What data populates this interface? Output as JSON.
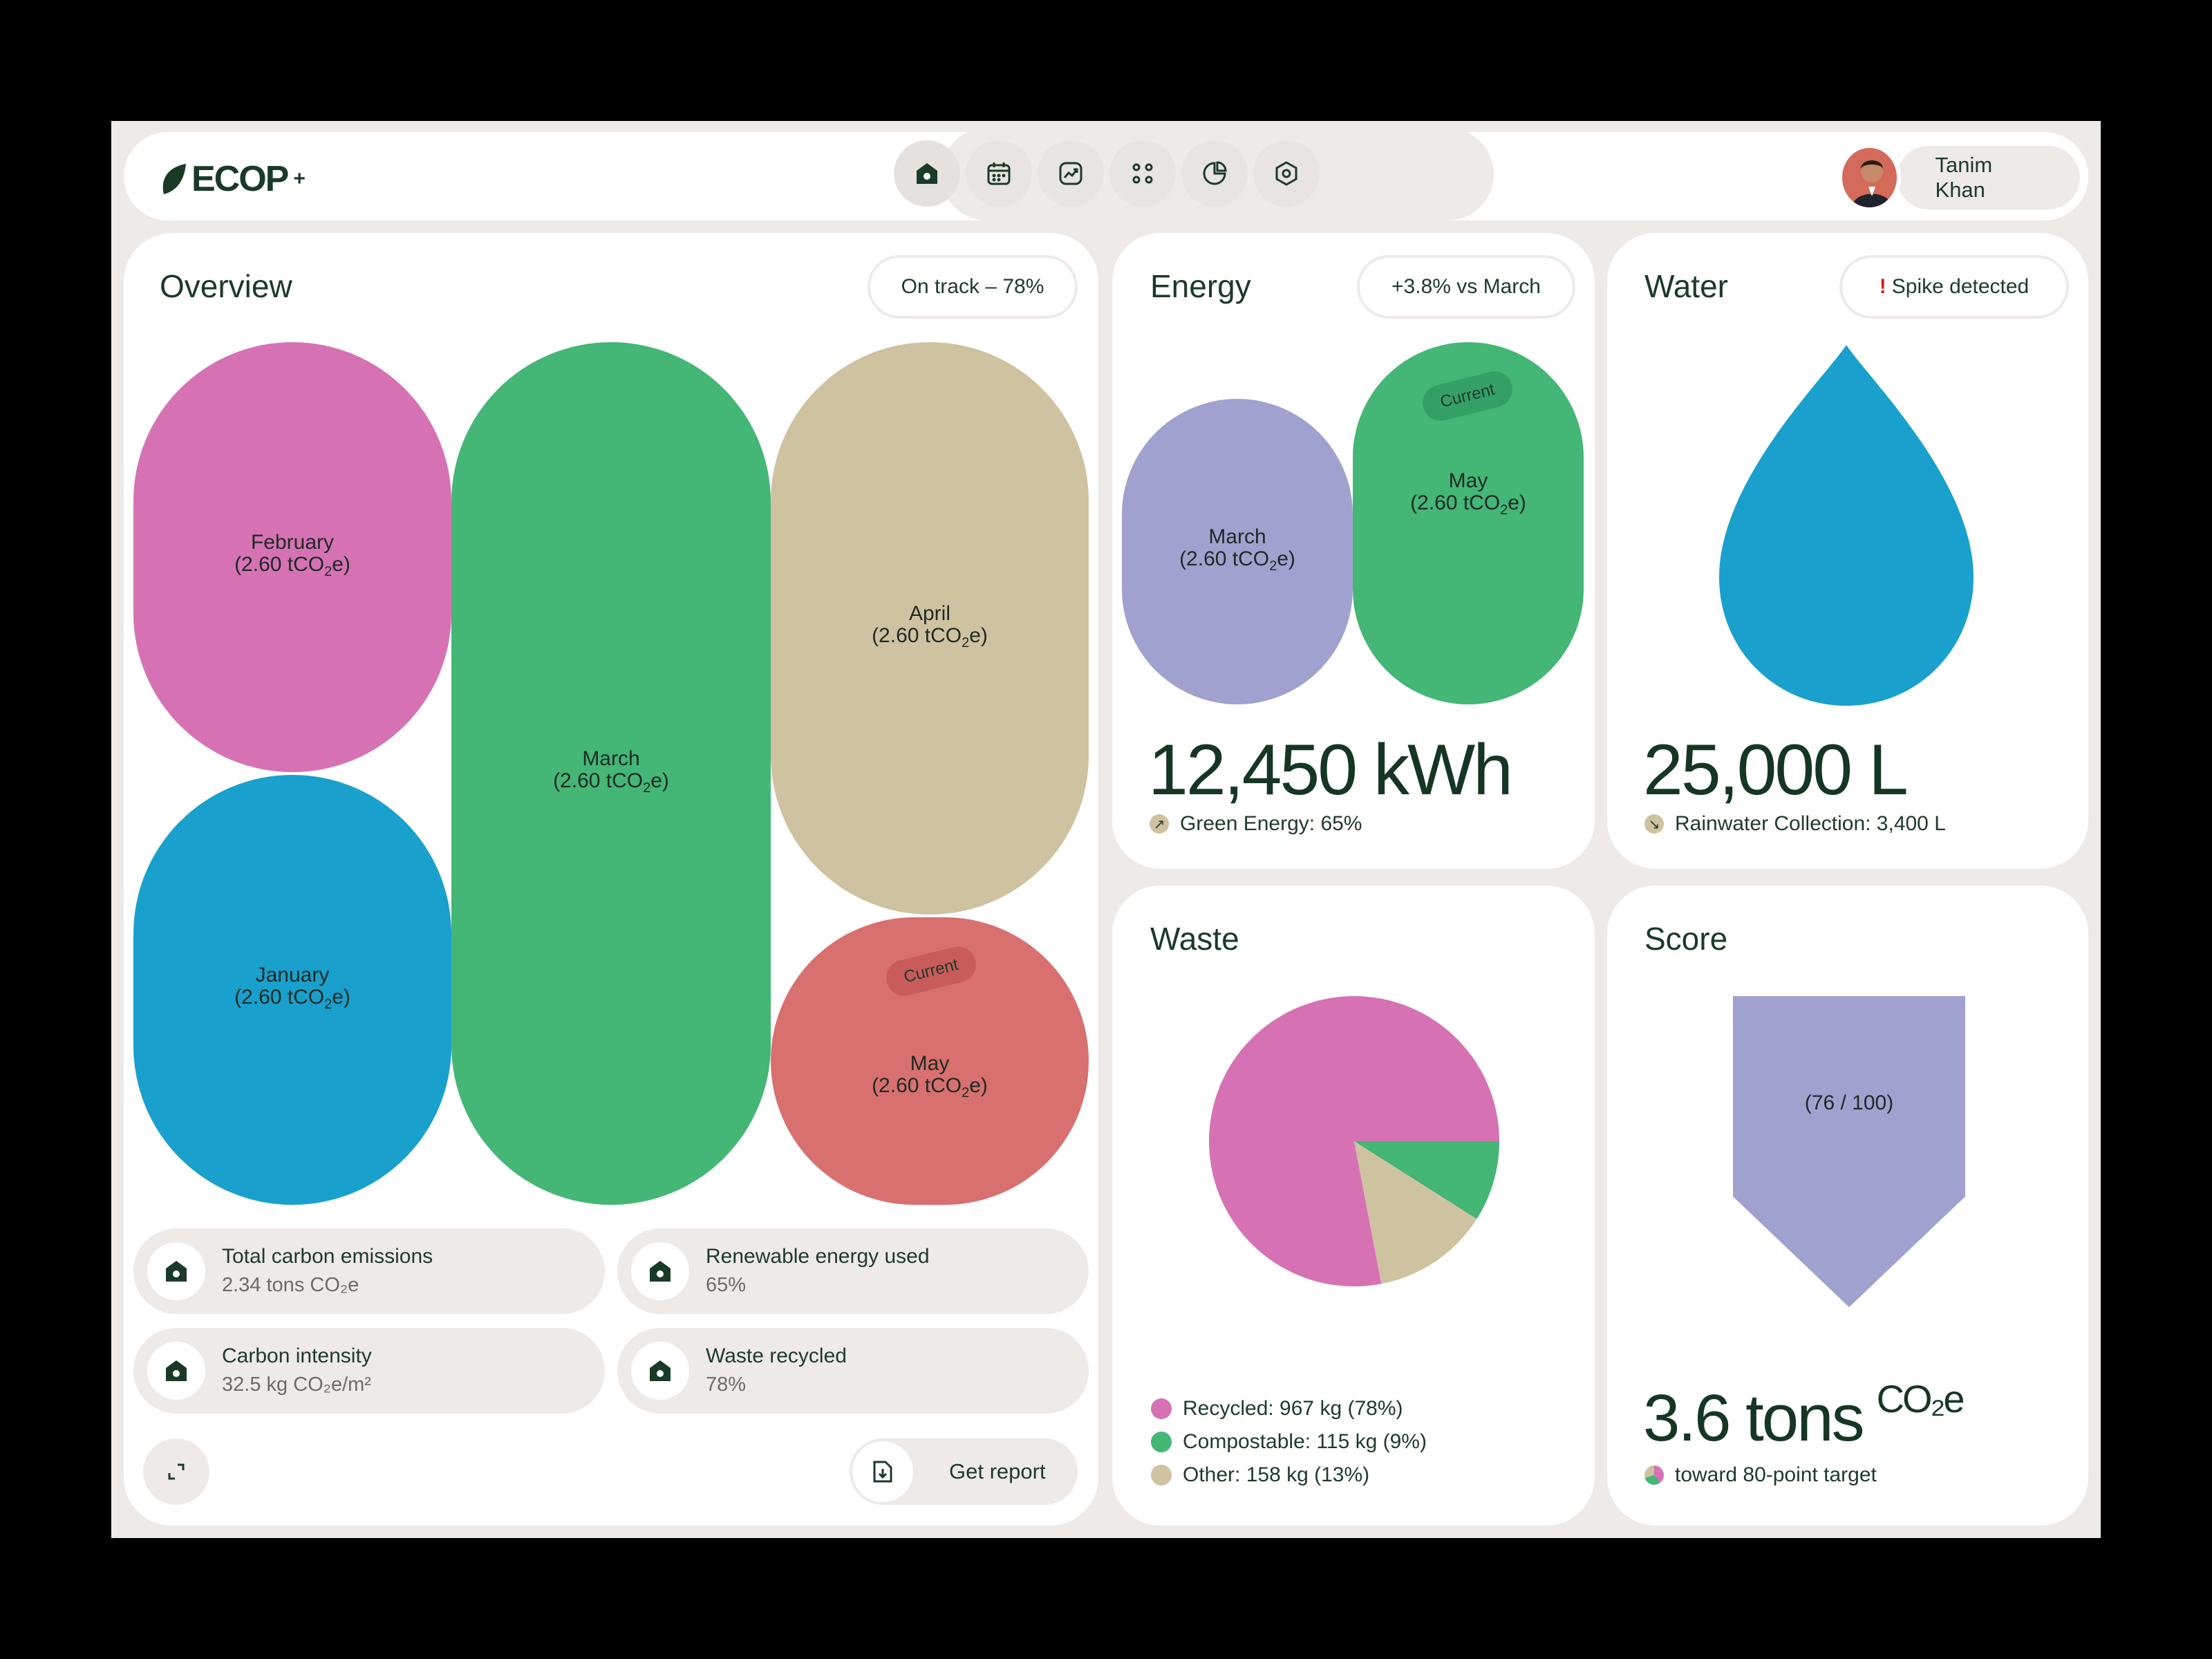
{
  "app": {
    "logo": "ECOP",
    "logo_sup": "+"
  },
  "nav": {
    "icons": [
      "home-icon",
      "calendar-icon",
      "trend-icon",
      "apps-icon",
      "pie-chart-icon",
      "settings-icon"
    ],
    "active": "home-icon"
  },
  "user": {
    "name": "Tanim Khan"
  },
  "overview": {
    "title": "Overview",
    "status": "On track – 78%",
    "months": [
      {
        "name": "February",
        "value_prefix": "(2.60 tCO",
        "value_sub": "2",
        "value_suffix": "e)",
        "color": "#d672b4"
      },
      {
        "name": "January",
        "value_prefix": "(2.60 tCO",
        "value_sub": "2",
        "value_suffix": "e)",
        "color": "#19a0cd"
      },
      {
        "name": "March",
        "value_prefix": "(2.60 tCO",
        "value_sub": "2",
        "value_suffix": "e)",
        "color": "#44b676"
      },
      {
        "name": "April",
        "value_prefix": "(2.60 tCO",
        "value_sub": "2",
        "value_suffix": "e)",
        "color": "#cfc2a1"
      },
      {
        "name": "May",
        "value_prefix": "(2.60 tCO",
        "value_sub": "2",
        "value_suffix": "e)",
        "color": "#d8706f",
        "tag": "Current"
      }
    ],
    "stats": [
      {
        "label": "Total carbon emissions",
        "value": "2.34 tons CO₂e"
      },
      {
        "label": "Renewable energy used",
        "value": "65%"
      },
      {
        "label": "Carbon intensity",
        "value": "32.5 kg CO₂e/m²"
      },
      {
        "label": "Waste recycled",
        "value": "78%"
      }
    ],
    "report_label": "Get report"
  },
  "energy": {
    "title": "Energy",
    "badge": "+3.8% vs March",
    "bars": [
      {
        "name": "March",
        "value_prefix": "(2.60 tCO",
        "value_sub": "2",
        "value_suffix": "e)",
        "color": "#a1a1d0"
      },
      {
        "name": "May",
        "value_prefix": "(2.60 tCO",
        "value_sub": "2",
        "value_suffix": "e)",
        "color": "#44b676",
        "tag": "Current"
      }
    ],
    "value": "12,450 kWh",
    "sub": "Green Energy: 65%"
  },
  "water": {
    "title": "Water",
    "badge_mark": "!",
    "badge": "Spike detected",
    "value": "25,000 L",
    "sub": "Rainwater Collection: 3,400 L",
    "color": "#19a0cd"
  },
  "waste": {
    "title": "Waste",
    "chart_data": {
      "type": "pie",
      "slices": [
        {
          "label": "Recycled",
          "kg": 967,
          "percent": 78,
          "color": "#d672b4"
        },
        {
          "label": "Compostable",
          "kg": 115,
          "percent": 9,
          "color": "#44b676"
        },
        {
          "label": "Other",
          "kg": 158,
          "percent": 13,
          "color": "#cfc2a1"
        }
      ]
    },
    "legend": [
      "Recycled: 967 kg (78%)",
      "Compostable: 115 kg (9%)",
      "Other: 158 kg (13%)"
    ]
  },
  "score": {
    "title": "Score",
    "label": "(76 / 100)",
    "value": "3.6 tons",
    "unit": "CO₂e",
    "sub": "toward 80-point target",
    "color": "#a1a1d0"
  }
}
